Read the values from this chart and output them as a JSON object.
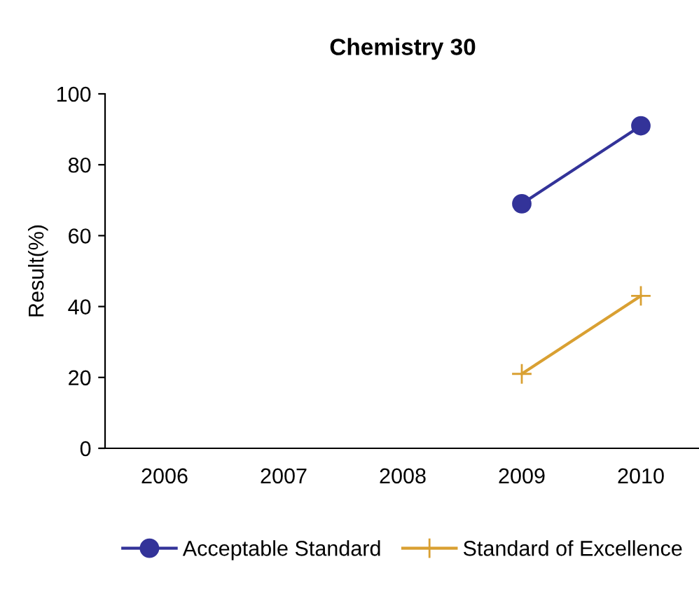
{
  "chart_data": {
    "type": "line",
    "title": "Chemistry 30",
    "ylabel": "Result(%)",
    "categories": [
      "2006",
      "2007",
      "2008",
      "2009",
      "2010"
    ],
    "series": [
      {
        "name": "Acceptable Standard",
        "color": "#333399",
        "marker": "circle",
        "values": [
          null,
          null,
          null,
          69,
          91
        ]
      },
      {
        "name": "Standard of Excellence",
        "color": "#d9a032",
        "marker": "cross",
        "values": [
          null,
          null,
          null,
          21,
          43
        ]
      }
    ],
    "ylim": [
      0,
      100
    ],
    "yticks": [
      0,
      20,
      40,
      60,
      80,
      100
    ],
    "grid": false,
    "legend": "bottom"
  }
}
